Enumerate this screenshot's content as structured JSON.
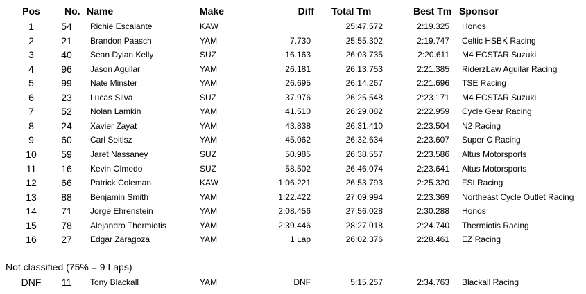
{
  "headers": {
    "pos": "Pos",
    "no": "No.",
    "name": "Name",
    "make": "Make",
    "diff": "Diff",
    "total": "Total Tm",
    "best": "Best Tm",
    "sponsor": "Sponsor"
  },
  "rows": [
    {
      "pos": "1",
      "no": "54",
      "name": "Richie Escalante",
      "make": "KAW",
      "diff": "",
      "total": "25:47.572",
      "best": "2:19.325",
      "sponsor": "Honos"
    },
    {
      "pos": "2",
      "no": "21",
      "name": "Brandon Paasch",
      "make": "YAM",
      "diff": "7.730",
      "total": "25:55.302",
      "best": "2:19.747",
      "sponsor": "Celtic HSBK Racing"
    },
    {
      "pos": "3",
      "no": "40",
      "name": "Sean Dylan Kelly",
      "make": "SUZ",
      "diff": "16.163",
      "total": "26:03.735",
      "best": "2:20.611",
      "sponsor": "M4 ECSTAR Suzuki"
    },
    {
      "pos": "4",
      "no": "96",
      "name": "Jason Aguilar",
      "make": "YAM",
      "diff": "26.181",
      "total": "26:13.753",
      "best": "2:21.385",
      "sponsor": "RiderzLaw Aguilar Racing"
    },
    {
      "pos": "5",
      "no": "99",
      "name": "Nate Minster",
      "make": "YAM",
      "diff": "26.695",
      "total": "26:14.267",
      "best": "2:21.696",
      "sponsor": "TSE Racing"
    },
    {
      "pos": "6",
      "no": "23",
      "name": "Lucas Silva",
      "make": "SUZ",
      "diff": "37.976",
      "total": "26:25.548",
      "best": "2:23.171",
      "sponsor": "M4 ECSTAR Suzuki"
    },
    {
      "pos": "7",
      "no": "52",
      "name": "Nolan Lamkin",
      "make": "YAM",
      "diff": "41.510",
      "total": "26:29.082",
      "best": "2:22.959",
      "sponsor": "Cycle Gear Racing"
    },
    {
      "pos": "8",
      "no": "24",
      "name": "Xavier Zayat",
      "make": "YAM",
      "diff": "43.838",
      "total": "26:31.410",
      "best": "2:23.504",
      "sponsor": "N2 Racing"
    },
    {
      "pos": "9",
      "no": "60",
      "name": "Carl Soltisz",
      "make": "YAM",
      "diff": "45.062",
      "total": "26:32.634",
      "best": "2:23.607",
      "sponsor": "Super C Racing"
    },
    {
      "pos": "10",
      "no": "59",
      "name": "Jaret Nassaney",
      "make": "SUZ",
      "diff": "50.985",
      "total": "26:38.557",
      "best": "2:23.586",
      "sponsor": "Altus Motorsports"
    },
    {
      "pos": "11",
      "no": "16",
      "name": "Kevin Olmedo",
      "make": "SUZ",
      "diff": "58.502",
      "total": "26:46.074",
      "best": "2:23.641",
      "sponsor": "Altus Motorsports"
    },
    {
      "pos": "12",
      "no": "66",
      "name": "Patrick Coleman",
      "make": "KAW",
      "diff": "1:06.221",
      "total": "26:53.793",
      "best": "2:25.320",
      "sponsor": "FSI Racing"
    },
    {
      "pos": "13",
      "no": "88",
      "name": "Benjamin Smith",
      "make": "YAM",
      "diff": "1:22.422",
      "total": "27:09.994",
      "best": "2:23.369",
      "sponsor": "Northeast Cycle Outlet Racing"
    },
    {
      "pos": "14",
      "no": "71",
      "name": "Jorge Ehrenstein",
      "make": "YAM",
      "diff": "2:08.456",
      "total": "27:56.028",
      "best": "2:30.288",
      "sponsor": "Honos"
    },
    {
      "pos": "15",
      "no": "78",
      "name": "Alejandro Thermiotis",
      "make": "YAM",
      "diff": "2:39.446",
      "total": "28:27.018",
      "best": "2:24.740",
      "sponsor": "Thermiotis Racing"
    },
    {
      "pos": "16",
      "no": "27",
      "name": "Edgar Zaragoza",
      "make": "YAM",
      "diff": "1 Lap",
      "total": "26:02.376",
      "best": "2:28.461",
      "sponsor": "EZ Racing"
    }
  ],
  "not_classified": {
    "label": "Not classified (75% = 9 Laps)",
    "rows": [
      {
        "pos": "DNF",
        "no": "11",
        "name": "Tony Blackall",
        "make": "YAM",
        "diff": "DNF",
        "total": "5:15.257",
        "best": "2:34.763",
        "sponsor": "Blackall Racing"
      }
    ]
  }
}
